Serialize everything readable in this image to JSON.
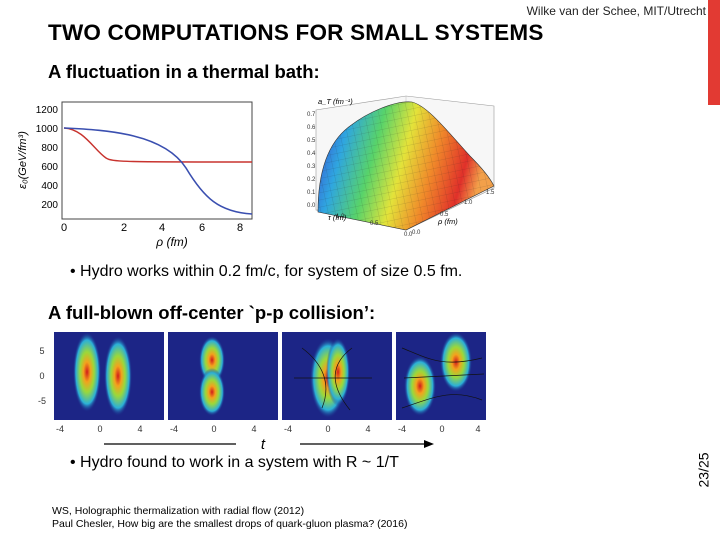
{
  "header": {
    "author": "Wilke van der Schee, MIT/Utrecht",
    "title": "TWO COMPUTATIONS FOR SMALL SYSTEMS"
  },
  "section1": {
    "heading": "A fluctuation in a thermal bath:",
    "plot2d": {
      "ylabel": "ε₀(GeV/fm³)",
      "xlabel": "ρ (fm)",
      "yticks": [
        "1200",
        "1000",
        "800",
        "600",
        "400",
        "200"
      ],
      "xticks": [
        "0",
        "2",
        "4",
        "6",
        "8"
      ]
    },
    "plot3d": {
      "zlabel": "a_T (fm⁻¹)",
      "xlabel": "τ (fm)",
      "ylabel": "ρ (fm)",
      "zticks": [
        "0.7",
        "0.6",
        "0.5",
        "0.4",
        "0.3",
        "0.2",
        "0.1",
        "0.0"
      ],
      "xticks": [
        "0.0",
        "0.5",
        "1.0"
      ],
      "yticks": [
        "0.0",
        "0.5",
        "1.0",
        "1.5"
      ]
    },
    "bullet": "Hydro works within 0.2 fm/c, for system of size 0.5 fm."
  },
  "section2": {
    "heading": "A full-blown off-center `p-p collision’:",
    "panels": {
      "yticks": [
        "5",
        "0",
        "-5"
      ],
      "xticks": [
        "-4",
        "0",
        "4",
        "-4",
        "0",
        "4",
        "-4",
        "0",
        "4",
        "-4",
        "0",
        "4"
      ]
    },
    "time_label": "t",
    "bullet": "Hydro found to work in a system with R ~ 1/T"
  },
  "references": [
    "WS, Holographic thermalization with radial flow (2012)",
    "Paul Chesler, How big are the smallest drops of quark-gluon plasma? (2016)"
  ],
  "page_number": "23/25",
  "colors": {
    "accent": "#e23a33",
    "curve": "#3a4fb0",
    "curve2": "#c8332e"
  }
}
